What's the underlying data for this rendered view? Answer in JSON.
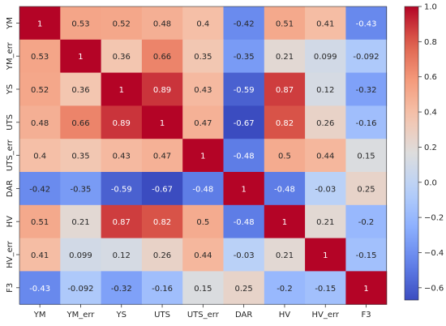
{
  "chart_data": {
    "type": "heatmap",
    "title": "",
    "xlabel": "",
    "ylabel": "",
    "x_labels": [
      "YM",
      "YM_err",
      "YS",
      "UTS",
      "UTS_err",
      "DAR",
      "HV",
      "HV_err",
      "F3"
    ],
    "y_labels": [
      "YM",
      "YM_err",
      "YS",
      "UTS",
      "UTS_err",
      "DAR",
      "HV",
      "HV_err",
      "F3"
    ],
    "values": [
      [
        1,
        0.53,
        0.52,
        0.48,
        0.4,
        -0.42,
        0.51,
        0.41,
        -0.43
      ],
      [
        0.53,
        1,
        0.36,
        0.66,
        0.35,
        -0.35,
        0.21,
        0.099,
        -0.092
      ],
      [
        0.52,
        0.36,
        1,
        0.89,
        0.43,
        -0.59,
        0.87,
        0.12,
        -0.32
      ],
      [
        0.48,
        0.66,
        0.89,
        1,
        0.47,
        -0.67,
        0.82,
        0.26,
        -0.16
      ],
      [
        0.4,
        0.35,
        0.43,
        0.47,
        1,
        -0.48,
        0.5,
        0.44,
        0.15
      ],
      [
        -0.42,
        -0.35,
        -0.59,
        -0.67,
        -0.48,
        1,
        -0.48,
        -0.03,
        0.25
      ],
      [
        0.51,
        0.21,
        0.87,
        0.82,
        0.5,
        -0.48,
        1,
        0.21,
        -0.2
      ],
      [
        0.41,
        0.099,
        0.12,
        0.26,
        0.44,
        -0.03,
        0.21,
        1,
        -0.15
      ],
      [
        -0.43,
        -0.092,
        -0.32,
        -0.16,
        0.15,
        0.25,
        -0.2,
        -0.15,
        1
      ]
    ],
    "colormap": "coolwarm",
    "color_range": [
      -0.67,
      1.0
    ],
    "colorbar_ticks": [
      1.0,
      0.8,
      0.6,
      0.4,
      0.2,
      0.0,
      -0.2,
      -0.4,
      -0.6
    ],
    "colorbar_tick_labels": [
      "1.0",
      "0.8",
      "0.6",
      "0.4",
      "0.2",
      "0.0",
      "−0.2",
      "−0.4",
      "−0.6"
    ],
    "annotate_cells": true,
    "grid": false
  }
}
